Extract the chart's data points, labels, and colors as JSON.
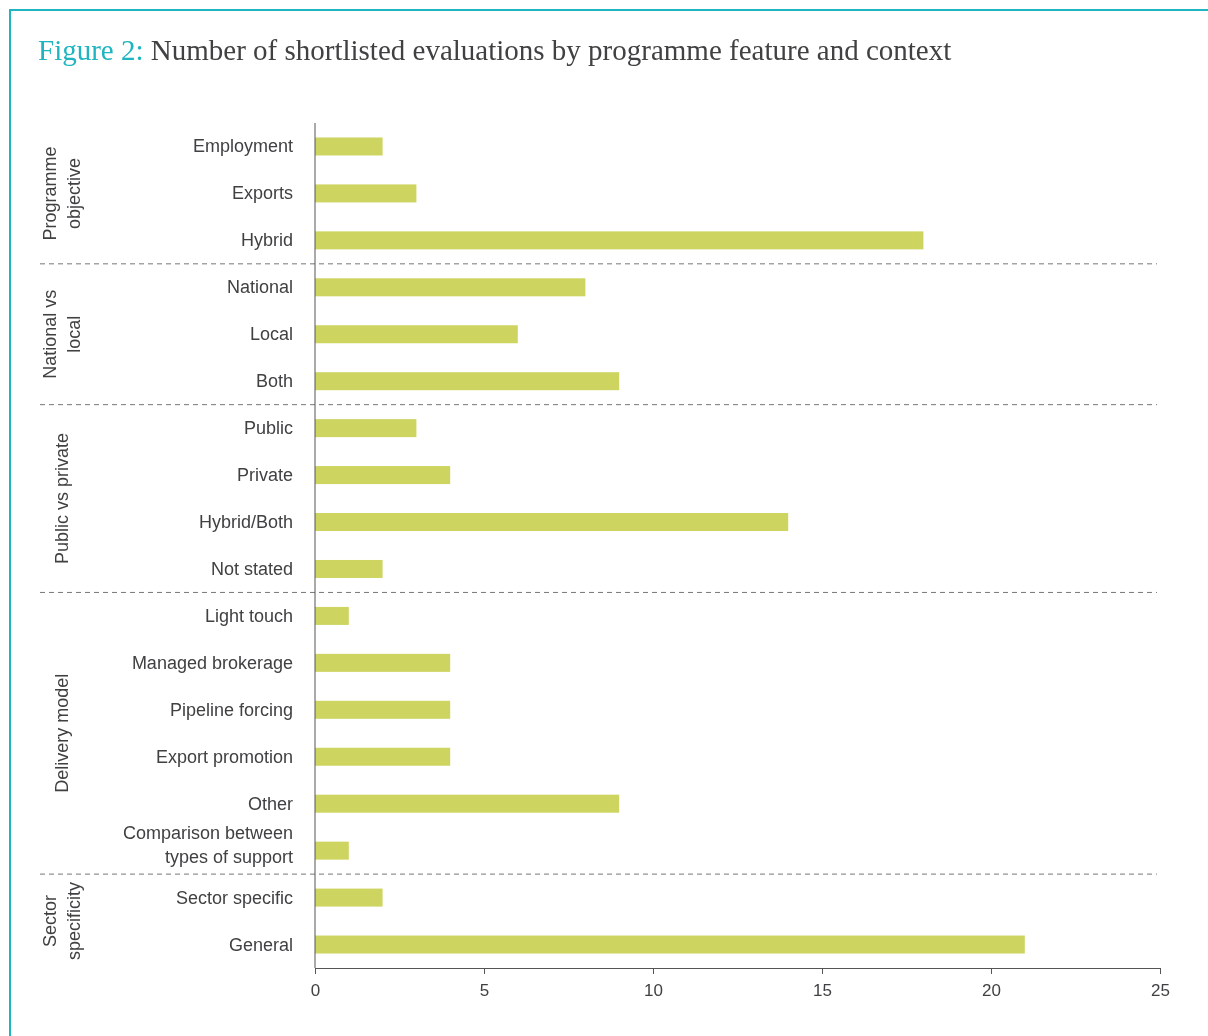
{
  "chart_data": {
    "type": "bar",
    "orientation": "horizontal",
    "title": "Figure 2: Number of shortlisted evaluations by programme feature and context",
    "categories": [
      "Employment",
      "Exports",
      "Hybrid",
      "National",
      "Local",
      "Both",
      "Public",
      "Private",
      "Hybrid/Both",
      "Not stated",
      "Light touch",
      "Managed brokerage",
      "Pipeline forcing",
      "Export promotion",
      "Other",
      "Comparison between types of support",
      "Sector specific",
      "General"
    ],
    "values": [
      2,
      3,
      18,
      8,
      6,
      9,
      3,
      4,
      14,
      2,
      1,
      4,
      4,
      4,
      9,
      1,
      2,
      21
    ],
    "color": "#cdd560",
    "xlim": [
      0,
      25
    ],
    "xticks": [
      0,
      5,
      10,
      15,
      20,
      25
    ],
    "grid": false,
    "annotations": [
      "Programme objective",
      "National vs local",
      "Public vs private",
      "Delivery model",
      "Sector specificity"
    ]
  }
}
